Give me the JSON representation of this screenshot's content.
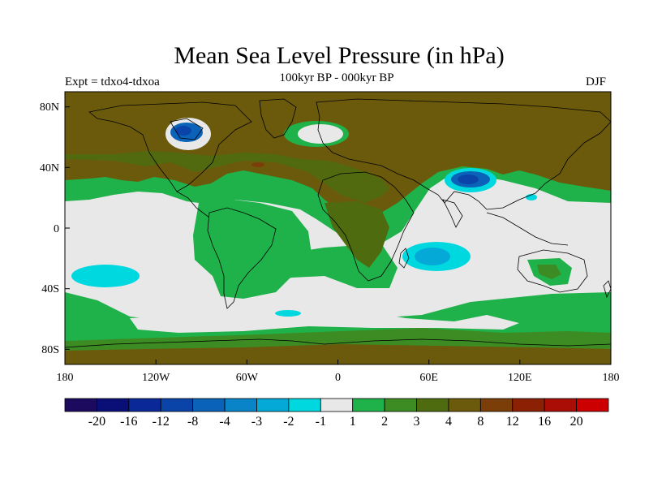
{
  "title": "Mean Sea Level Pressure (in hPa)",
  "subtitle": "100kyr BP - 000kyr BP",
  "experiment": "Expt = tdxo4-tdxoa",
  "season": "DJF",
  "map": {
    "projection": "cylindrical equidistant",
    "lon_range": [
      -180,
      180
    ],
    "lat_range": [
      -90,
      90
    ],
    "lat_tick_labels": [
      "80N",
      "40N",
      "0",
      "40S",
      "80S"
    ],
    "lon_tick_labels": [
      "180",
      "120W",
      "60W",
      "0",
      "60E",
      "120E",
      "180"
    ],
    "features": [
      {
        "name": "low over Hudson Bay / N. America",
        "category": "-4"
      },
      {
        "name": "low over Tibetan Plateau",
        "category": "-4"
      },
      {
        "name": "low in S. Indian Ocean",
        "category": "-3"
      },
      {
        "name": "low in S. Pacific",
        "category": "-2"
      },
      {
        "name": "high over N. Eurasia",
        "category": "8"
      },
      {
        "name": "weak field over tropical & southern oceans",
        "category": "-1 to 1"
      }
    ]
  },
  "colorbar": {
    "colors": [
      "#1b0a5e",
      "#0a0f78",
      "#0a2897",
      "#0a44a8",
      "#0a63b8",
      "#0a84c8",
      "#04a9d8",
      "#00d8e0",
      "#e8e8e8",
      "#1fb24a",
      "#3c8c23",
      "#4f6b0f",
      "#6b5a0c",
      "#7b3e08",
      "#8c2005",
      "#a90d05",
      "#cc0000"
    ],
    "labels": [
      "-20",
      "-16",
      "-12",
      "-8",
      "-4",
      "-3",
      "-2",
      "-1",
      "1",
      "2",
      "3",
      "4",
      "8",
      "12",
      "16",
      "20"
    ]
  }
}
